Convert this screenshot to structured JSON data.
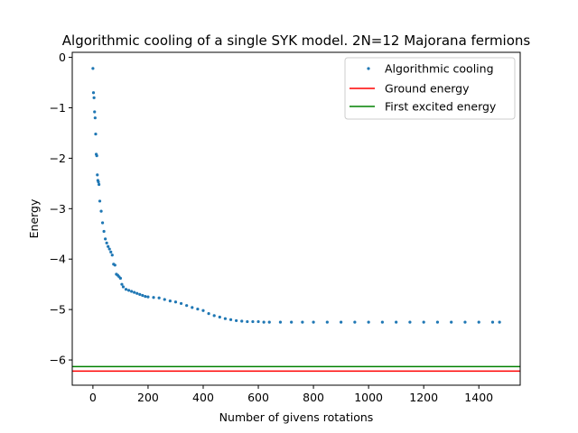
{
  "chart_data": {
    "type": "scatter",
    "title": "Algorithmic cooling of a single SYK model. 2N=12 Majorana fermions",
    "xlabel": "Number of givens rotations",
    "ylabel": "Energy",
    "xlim": [
      -75,
      1550
    ],
    "ylim": [
      -6.5,
      0.1
    ],
    "xticks": [
      0,
      200,
      400,
      600,
      800,
      1000,
      1200,
      1400
    ],
    "yticks": [
      0,
      -1,
      -2,
      -3,
      -4,
      -5,
      -6
    ],
    "xtick_labels": [
      "0",
      "200",
      "400",
      "600",
      "800",
      "1000",
      "1200",
      "1400"
    ],
    "ytick_labels": [
      "0",
      "−1",
      "−2",
      "−3",
      "−4",
      "−5",
      "−6"
    ],
    "legend_position": "upper right",
    "grid": false,
    "series": [
      {
        "name": "Algorithmic cooling",
        "kind": "points",
        "color": "#1f77b4",
        "x": [
          0,
          2,
          4,
          6,
          8,
          10,
          12,
          14,
          16,
          18,
          20,
          22,
          25,
          30,
          35,
          40,
          45,
          50,
          55,
          60,
          65,
          70,
          75,
          80,
          85,
          90,
          95,
          100,
          105,
          110,
          120,
          130,
          140,
          150,
          160,
          170,
          180,
          190,
          200,
          220,
          240,
          260,
          280,
          300,
          320,
          340,
          360,
          380,
          400,
          420,
          440,
          460,
          480,
          500,
          520,
          540,
          560,
          580,
          600,
          620,
          640,
          680,
          720,
          760,
          800,
          850,
          900,
          950,
          1000,
          1050,
          1100,
          1150,
          1200,
          1250,
          1300,
          1350,
          1400,
          1450,
          1475
        ],
        "y": [
          -0.22,
          -0.7,
          -0.8,
          -1.08,
          -1.2,
          -1.52,
          -1.92,
          -1.95,
          -2.33,
          -2.44,
          -2.47,
          -2.52,
          -2.85,
          -3.05,
          -3.28,
          -3.45,
          -3.6,
          -3.68,
          -3.75,
          -3.8,
          -3.86,
          -3.92,
          -4.1,
          -4.12,
          -4.3,
          -4.32,
          -4.35,
          -4.38,
          -4.5,
          -4.55,
          -4.6,
          -4.62,
          -4.64,
          -4.66,
          -4.68,
          -4.7,
          -4.72,
          -4.74,
          -4.75,
          -4.76,
          -4.77,
          -4.8,
          -4.83,
          -4.85,
          -4.88,
          -4.92,
          -4.96,
          -4.99,
          -5.02,
          -5.08,
          -5.12,
          -5.15,
          -5.18,
          -5.2,
          -5.22,
          -5.23,
          -5.24,
          -5.24,
          -5.24,
          -5.25,
          -5.25,
          -5.25,
          -5.25,
          -5.25,
          -5.25,
          -5.25,
          -5.25,
          -5.25,
          -5.25,
          -5.25,
          -5.25,
          -5.25,
          -5.25,
          -5.25,
          -5.25,
          -5.25,
          -5.25,
          -5.25,
          -5.25
        ]
      },
      {
        "name": "Ground energy",
        "kind": "hline",
        "color": "#ff0000",
        "y": -6.22
      },
      {
        "name": "First excited energy",
        "kind": "hline",
        "color": "#008000",
        "y": -6.13
      }
    ]
  }
}
